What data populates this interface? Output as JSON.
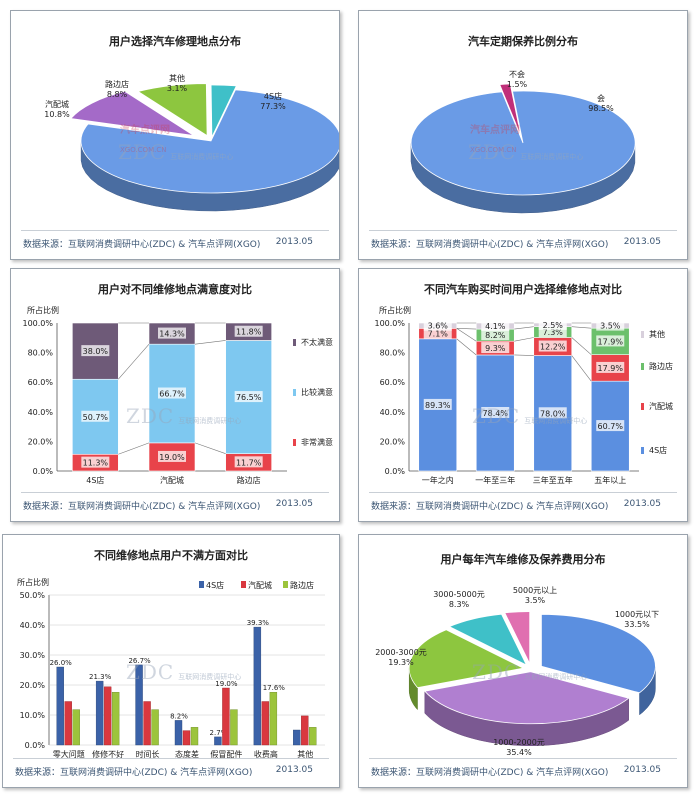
{
  "source_label": "数据来源：互联网消费调研中心(ZDC) & 汽车点评网(XGO)",
  "date_label": "2013.05",
  "watermark": {
    "zdc": "ZDC",
    "zdc_sub": "互联网消费调研中心",
    "xgo": "汽车点评网",
    "xgo_sub": "XGO.COM.CN"
  },
  "colors": {
    "blue": "#5b8fe0",
    "red": "#e8434a",
    "green": "#8dc63f",
    "purple": "#b07fd0",
    "teal": "#3fc0c8",
    "pink": "#e06fb0",
    "olive": "#7aa32a",
    "gray": "#7d6b82"
  },
  "chart_data": [
    {
      "id": "repair_location",
      "type": "pie",
      "title": "用户选择汽车修理地点分布",
      "slices": [
        {
          "label": "4S店",
          "value": 77.3,
          "value_label": "77.3%",
          "color": "#6a9be6"
        },
        {
          "label": "汽配城",
          "value": 10.8,
          "value_label": "10.8%",
          "color": "#a46ac8"
        },
        {
          "label": "路边店",
          "value": 8.8,
          "value_label": "8.8%",
          "color": "#8dc63f"
        },
        {
          "label": "其他",
          "value": 3.1,
          "value_label": "3.1%",
          "color": "#3fc0c8"
        }
      ]
    },
    {
      "id": "regular_maintenance",
      "type": "pie",
      "title": "汽车定期保养比例分布",
      "slices": [
        {
          "label": "会",
          "value": 98.5,
          "value_label": "98.5%",
          "color": "#6a9be6"
        },
        {
          "label": "不会",
          "value": 1.5,
          "value_label": "1.5%",
          "color": "#c0307a"
        }
      ]
    },
    {
      "id": "satisfaction",
      "type": "bar",
      "stacked": true,
      "title": "用户对不同维修地点满意度对比",
      "ylabel": "所占比例",
      "ylim": [
        0,
        100
      ],
      "yticks": [
        "0.0%",
        "20.0%",
        "40.0%",
        "60.0%",
        "80.0%",
        "100.0%"
      ],
      "categories": [
        "4S店",
        "汽配城",
        "路边店"
      ],
      "series": [
        {
          "name": "非常满意",
          "values": [
            11.3,
            19.0,
            11.7
          ],
          "labels": [
            "11.3%",
            "19.0%",
            "11.7%"
          ],
          "color": "#e8434a"
        },
        {
          "name": "比较满意",
          "values": [
            50.7,
            66.7,
            76.5
          ],
          "labels": [
            "50.7%",
            "66.7%",
            "76.5%"
          ],
          "color": "#7ec8f0"
        },
        {
          "name": "不太满意",
          "values": [
            38.0,
            14.3,
            11.8
          ],
          "labels": [
            "38.0%",
            "14.3%",
            "11.8%"
          ],
          "color": "#6e5a78"
        }
      ]
    },
    {
      "id": "purchase_time",
      "type": "bar",
      "stacked": true,
      "title": "不同汽车购买时间用户选择维修地点对比",
      "ylabel": "所占比例",
      "ylim": [
        0,
        100
      ],
      "yticks": [
        "0.0%",
        "20.0%",
        "40.0%",
        "60.0%",
        "80.0%",
        "100.0%"
      ],
      "categories": [
        "一年之内",
        "一年至三年",
        "三年至五年",
        "五年以上"
      ],
      "series": [
        {
          "name": "4S店",
          "values": [
            89.3,
            78.4,
            78.0,
            60.7
          ],
          "labels": [
            "89.3%",
            "78.4%",
            "78.0%",
            "60.7%"
          ],
          "color": "#5b8fe0"
        },
        {
          "name": "汽配城",
          "values": [
            7.1,
            9.3,
            12.2,
            17.9
          ],
          "labels": [
            "7.1%",
            "9.3%",
            "12.2%",
            "17.9%"
          ],
          "color": "#e8434a"
        },
        {
          "name": "路边店",
          "values": [
            0.0,
            8.2,
            7.3,
            17.9
          ],
          "labels": [
            "",
            "8.2%",
            "7.3%",
            "17.9%"
          ],
          "color": "#6cc06c"
        },
        {
          "name": "其他",
          "values": [
            3.6,
            4.1,
            2.5,
            3.5
          ],
          "labels": [
            "3.6%",
            "4.1%",
            "2.5%",
            "3.5%"
          ],
          "color": "#d8d0dc"
        }
      ]
    },
    {
      "id": "dissatisfaction",
      "type": "bar",
      "title": "不同维修地点用户不满方面对比",
      "ylabel": "所占比例",
      "ylim": [
        0,
        50
      ],
      "yticks": [
        "0.0%",
        "10.0%",
        "20.0%",
        "30.0%",
        "40.0%",
        "50.0%"
      ],
      "categories": [
        "零大问题",
        "修修不好",
        "时间长",
        "态度差",
        "假冒配件",
        "收费高",
        "其他"
      ],
      "series": [
        {
          "name": "4S店",
          "values": [
            26.0,
            21.3,
            26.7,
            8.2,
            2.7,
            39.3,
            5.0
          ],
          "labels": [
            "26.0%",
            "21.3%",
            "26.7%",
            "8.2%",
            "2.7%",
            "39.3%",
            ""
          ],
          "color": "#3b62a8"
        },
        {
          "name": "汽配城",
          "values": [
            14.5,
            19.4,
            14.5,
            4.8,
            19.0,
            14.5,
            9.7
          ],
          "labels": [
            "",
            "",
            "",
            "",
            "19.0%",
            "",
            ""
          ],
          "color": "#d9383f"
        },
        {
          "name": "路边店",
          "values": [
            11.8,
            17.6,
            11.8,
            5.9,
            11.8,
            17.6,
            5.9
          ],
          "labels": [
            "",
            "",
            "",
            "",
            "",
            "17.6%",
            ""
          ],
          "color": "#9cc43c"
        }
      ]
    },
    {
      "id": "annual_cost",
      "type": "pie",
      "title": "用户每年汽车维修及保养费用分布",
      "slices": [
        {
          "label": "1000元以下",
          "value": 33.5,
          "value_label": "33.5%",
          "color": "#5b8fe0"
        },
        {
          "label": "1000-2000元",
          "value": 35.4,
          "value_label": "35.4%",
          "color": "#b07fd0"
        },
        {
          "label": "2000-3000元",
          "value": 19.3,
          "value_label": "19.3%",
          "color": "#8dc63f"
        },
        {
          "label": "3000-5000元",
          "value": 8.3,
          "value_label": "8.3%",
          "color": "#3fc0c8"
        },
        {
          "label": "5000元以上",
          "value": 3.5,
          "value_label": "3.5%",
          "color": "#e06fb0"
        }
      ]
    }
  ]
}
